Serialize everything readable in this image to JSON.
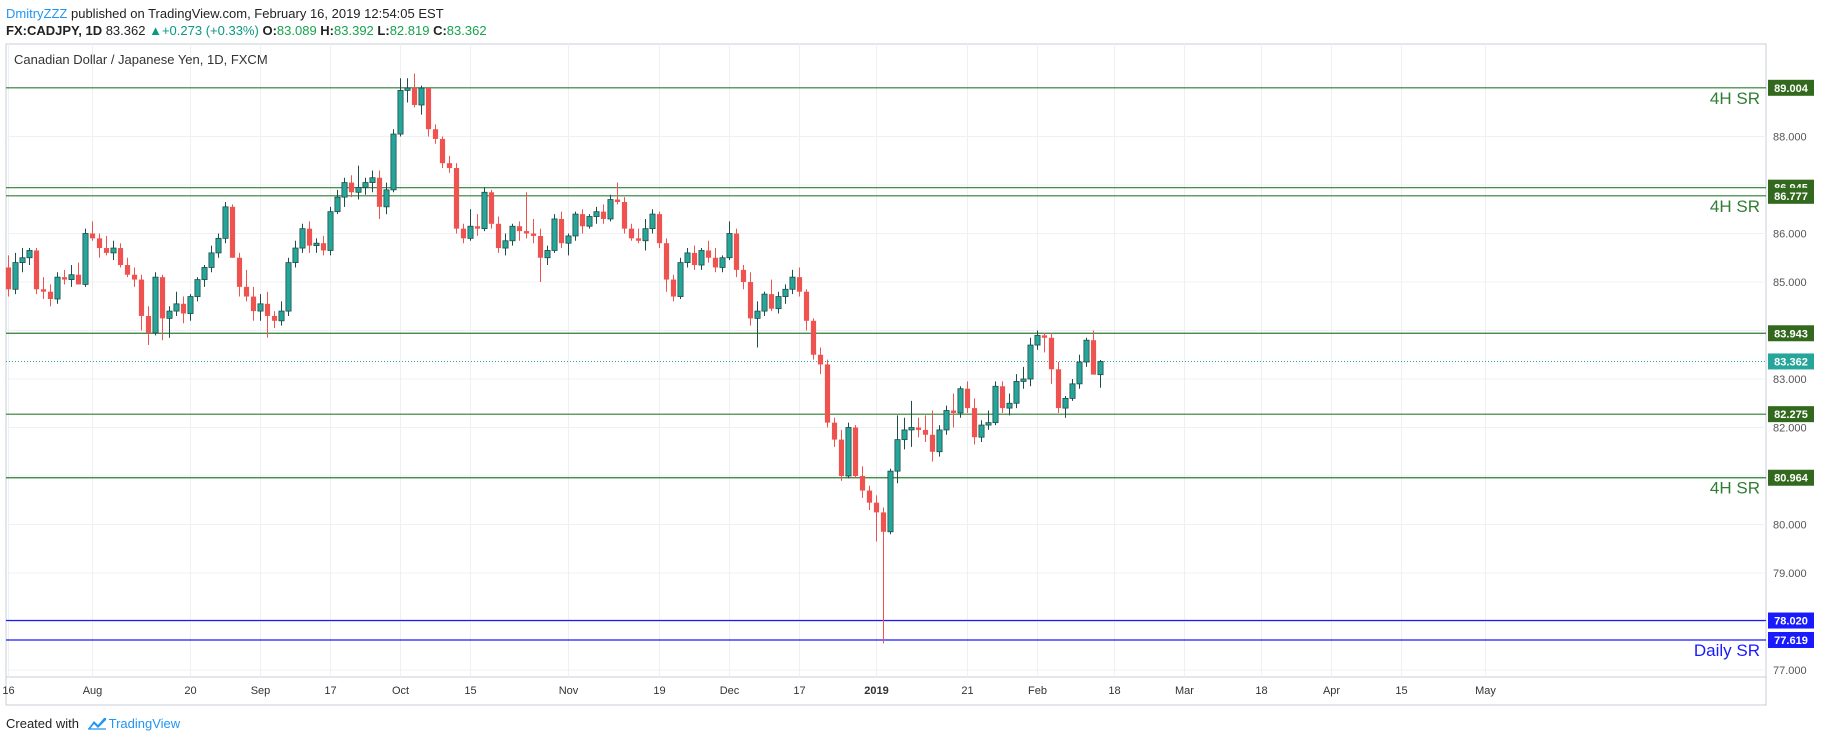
{
  "header": {
    "author": "DmitryZZZ",
    "published": " published on TradingView.com, February 16, 2019 12:54:05 EST",
    "symbol": "FX:CADJPY, 1D",
    "last": "83.362",
    "change": "+0.273 (+0.33%)",
    "o_label": "O:",
    "o_value": "83.089",
    "h_label": "H:",
    "h_value": "83.392",
    "l_label": "L:",
    "l_value": "82.819",
    "c_label": "C:",
    "c_value": "83.362"
  },
  "footer": {
    "created_with": "Created with",
    "brand": "TradingView"
  },
  "colors": {
    "up": "#26a69a",
    "down": "#ef5350",
    "level": "#2e7d32",
    "level_label_bg": "#33691e",
    "daily_line": "#1a1aff",
    "last_price": "#26a69a",
    "grid": "#eef0f3"
  },
  "chart_data": {
    "type": "candlestick",
    "title": "Canadian Dollar / Japanese Yen, 1D, FXCM",
    "ylim": [
      76.85,
      89.85
    ],
    "y_ticks": [
      77,
      78,
      79,
      80,
      81,
      82,
      83,
      84,
      85,
      86,
      87,
      88,
      89
    ],
    "y_tick_labels": [
      "77.000",
      "78.000",
      "79.000",
      "80.000",
      "81.000",
      "82.000",
      "83.000",
      "84.000",
      "85.000",
      "86.000",
      "87.000",
      "88.000",
      "89.000"
    ],
    "x_ticks": [
      {
        "label": "16",
        "idx": 0
      },
      {
        "label": "Aug",
        "idx": 12
      },
      {
        "label": "20",
        "idx": 26
      },
      {
        "label": "Sep",
        "idx": 36
      },
      {
        "label": "17",
        "idx": 46
      },
      {
        "label": "Oct",
        "idx": 56
      },
      {
        "label": "15",
        "idx": 66
      },
      {
        "label": "Nov",
        "idx": 80
      },
      {
        "label": "19",
        "idx": 93
      },
      {
        "label": "Dec",
        "idx": 103
      },
      {
        "label": "17",
        "idx": 113
      },
      {
        "label": "2019",
        "idx": 124,
        "bold": true
      },
      {
        "label": "21",
        "idx": 137
      },
      {
        "label": "Feb",
        "idx": 147
      },
      {
        "label": "18",
        "idx": 158
      },
      {
        "label": "Mar",
        "idx": 168
      },
      {
        "label": "18",
        "idx": 179
      },
      {
        "label": "Apr",
        "idx": 189
      },
      {
        "label": "15",
        "idx": 199
      },
      {
        "label": "May",
        "idx": 211
      }
    ],
    "candles": [
      [
        85.3,
        85.55,
        84.7,
        84.85
      ],
      [
        84.85,
        85.6,
        84.75,
        85.4
      ],
      [
        85.4,
        85.7,
        85.2,
        85.5
      ],
      [
        85.5,
        85.7,
        85.35,
        85.65
      ],
      [
        85.65,
        85.7,
        84.75,
        84.85
      ],
      [
        84.85,
        85.1,
        84.65,
        84.8
      ],
      [
        84.8,
        84.95,
        84.5,
        84.65
      ],
      [
        84.65,
        85.2,
        84.55,
        85.1
      ],
      [
        85.1,
        85.25,
        84.95,
        85.05
      ],
      [
        85.05,
        85.35,
        84.9,
        85.15
      ],
      [
        85.15,
        85.4,
        84.95,
        84.95
      ],
      [
        84.95,
        86.1,
        84.9,
        86.0
      ],
      [
        86.0,
        86.25,
        85.85,
        85.9
      ],
      [
        85.9,
        86.0,
        85.5,
        85.7
      ],
      [
        85.7,
        85.95,
        85.55,
        85.6
      ],
      [
        85.6,
        85.85,
        85.45,
        85.7
      ],
      [
        85.7,
        85.8,
        85.3,
        85.35
      ],
      [
        85.35,
        85.5,
        85.1,
        85.15
      ],
      [
        85.15,
        85.3,
        84.9,
        85.05
      ],
      [
        85.05,
        85.15,
        84.0,
        84.3
      ],
      [
        84.3,
        84.5,
        83.7,
        83.95
      ],
      [
        83.95,
        85.2,
        83.9,
        85.1
      ],
      [
        85.1,
        85.15,
        83.8,
        84.25
      ],
      [
        84.25,
        84.5,
        83.85,
        84.4
      ],
      [
        84.4,
        84.8,
        84.3,
        84.55
      ],
      [
        84.55,
        84.7,
        84.15,
        84.35
      ],
      [
        84.35,
        84.75,
        84.2,
        84.7
      ],
      [
        84.7,
        85.1,
        84.6,
        85.05
      ],
      [
        85.05,
        85.35,
        84.9,
        85.3
      ],
      [
        85.3,
        85.75,
        85.2,
        85.6
      ],
      [
        85.6,
        86.0,
        85.5,
        85.9
      ],
      [
        85.9,
        86.65,
        85.8,
        86.55
      ],
      [
        86.55,
        86.6,
        85.5,
        85.5
      ],
      [
        85.5,
        85.6,
        84.7,
        84.9
      ],
      [
        84.9,
        85.25,
        84.6,
        84.7
      ],
      [
        84.7,
        84.9,
        84.2,
        84.4
      ],
      [
        84.4,
        84.75,
        84.2,
        84.55
      ],
      [
        84.55,
        84.8,
        83.85,
        84.3
      ],
      [
        84.3,
        84.4,
        84.05,
        84.2
      ],
      [
        84.2,
        84.6,
        84.1,
        84.4
      ],
      [
        84.4,
        85.5,
        84.3,
        85.4
      ],
      [
        85.4,
        85.85,
        85.3,
        85.7
      ],
      [
        85.7,
        86.2,
        85.6,
        86.1
      ],
      [
        86.1,
        86.25,
        85.6,
        85.75
      ],
      [
        85.75,
        85.9,
        85.6,
        85.8
      ],
      [
        85.8,
        85.95,
        85.55,
        85.65
      ],
      [
        85.65,
        86.55,
        85.55,
        86.45
      ],
      [
        86.45,
        86.9,
        86.4,
        86.75
      ],
      [
        86.75,
        87.15,
        86.55,
        87.05
      ],
      [
        87.05,
        87.2,
        86.75,
        86.85
      ],
      [
        86.85,
        87.4,
        86.7,
        86.95
      ],
      [
        86.95,
        87.15,
        86.8,
        87.05
      ],
      [
        87.05,
        87.3,
        86.85,
        87.15
      ],
      [
        87.15,
        87.3,
        86.3,
        86.55
      ],
      [
        86.55,
        87.05,
        86.4,
        86.9
      ],
      [
        86.9,
        88.15,
        86.85,
        88.05
      ],
      [
        88.05,
        89.2,
        88.0,
        88.95
      ],
      [
        88.95,
        89.2,
        88.7,
        89.0
      ],
      [
        89.0,
        89.3,
        88.6,
        88.65
      ],
      [
        88.65,
        89.05,
        88.45,
        89.0
      ],
      [
        89.0,
        89.0,
        88.0,
        88.15
      ],
      [
        88.15,
        88.25,
        87.85,
        87.95
      ],
      [
        87.95,
        88.0,
        87.35,
        87.45
      ],
      [
        87.45,
        87.6,
        87.25,
        87.35
      ],
      [
        87.35,
        87.45,
        86.0,
        86.1
      ],
      [
        86.1,
        86.2,
        85.8,
        85.9
      ],
      [
        85.9,
        86.5,
        85.85,
        86.15
      ],
      [
        86.15,
        86.4,
        85.95,
        86.1
      ],
      [
        86.1,
        86.95,
        86.05,
        86.85
      ],
      [
        86.85,
        86.9,
        86.1,
        86.2
      ],
      [
        86.2,
        86.35,
        85.6,
        85.7
      ],
      [
        85.7,
        86.0,
        85.55,
        85.85
      ],
      [
        85.85,
        86.2,
        85.75,
        86.15
      ],
      [
        86.15,
        86.25,
        85.85,
        86.05
      ],
      [
        86.05,
        86.85,
        85.9,
        86.0
      ],
      [
        86.0,
        86.3,
        85.8,
        85.95
      ],
      [
        85.95,
        86.1,
        85.0,
        85.5
      ],
      [
        85.5,
        85.75,
        85.35,
        85.65
      ],
      [
        85.65,
        86.4,
        85.6,
        86.3
      ],
      [
        86.3,
        86.45,
        85.7,
        85.8
      ],
      [
        85.8,
        86.0,
        85.55,
        85.95
      ],
      [
        85.95,
        86.45,
        85.85,
        86.4
      ],
      [
        86.4,
        86.5,
        86.0,
        86.15
      ],
      [
        86.15,
        86.4,
        86.1,
        86.35
      ],
      [
        86.35,
        86.55,
        86.2,
        86.45
      ],
      [
        86.45,
        86.6,
        86.2,
        86.3
      ],
      [
        86.3,
        86.8,
        86.25,
        86.7
      ],
      [
        86.7,
        87.05,
        86.6,
        86.65
      ],
      [
        86.65,
        86.75,
        86.0,
        86.1
      ],
      [
        86.1,
        86.2,
        85.85,
        85.9
      ],
      [
        85.9,
        86.1,
        85.8,
        85.85
      ],
      [
        85.85,
        86.3,
        85.65,
        86.1
      ],
      [
        86.1,
        86.5,
        86.0,
        86.4
      ],
      [
        86.4,
        86.45,
        85.7,
        85.8
      ],
      [
        85.8,
        85.9,
        84.8,
        85.05
      ],
      [
        85.05,
        85.15,
        84.6,
        84.7
      ],
      [
        84.7,
        85.5,
        84.65,
        85.4
      ],
      [
        85.4,
        85.7,
        85.3,
        85.6
      ],
      [
        85.6,
        85.75,
        85.25,
        85.35
      ],
      [
        85.35,
        85.7,
        85.25,
        85.65
      ],
      [
        85.65,
        85.85,
        85.4,
        85.5
      ],
      [
        85.5,
        85.7,
        85.2,
        85.3
      ],
      [
        85.3,
        85.55,
        85.2,
        85.5
      ],
      [
        85.5,
        86.25,
        85.45,
        86.0
      ],
      [
        86.0,
        86.1,
        85.1,
        85.25
      ],
      [
        85.25,
        85.35,
        84.85,
        85.0
      ],
      [
        85.0,
        85.2,
        84.1,
        84.25
      ],
      [
        84.25,
        84.6,
        83.65,
        84.4
      ],
      [
        84.4,
        84.8,
        84.3,
        84.75
      ],
      [
        84.75,
        85.05,
        84.4,
        84.45
      ],
      [
        84.45,
        84.8,
        84.35,
        84.7
      ],
      [
        84.7,
        84.95,
        84.55,
        84.85
      ],
      [
        84.85,
        85.25,
        84.75,
        85.1
      ],
      [
        85.1,
        85.3,
        84.7,
        84.8
      ],
      [
        84.8,
        84.85,
        84.0,
        84.2
      ],
      [
        84.2,
        84.25,
        83.4,
        83.5
      ],
      [
        83.5,
        83.65,
        83.1,
        83.3
      ],
      [
        83.3,
        83.4,
        82.0,
        82.1
      ],
      [
        82.1,
        82.2,
        81.6,
        81.75
      ],
      [
        81.75,
        81.95,
        80.9,
        81.0
      ],
      [
        81.0,
        82.1,
        80.95,
        82.0
      ],
      [
        82.0,
        82.05,
        80.95,
        81.0
      ],
      [
        81.0,
        81.2,
        80.55,
        80.7
      ],
      [
        80.7,
        80.8,
        80.3,
        80.45
      ],
      [
        80.45,
        80.6,
        79.65,
        80.25
      ],
      [
        80.25,
        80.35,
        77.55,
        79.85
      ],
      [
        79.85,
        81.15,
        79.8,
        81.1
      ],
      [
        81.1,
        82.25,
        80.85,
        81.75
      ],
      [
        81.75,
        82.2,
        81.55,
        81.95
      ],
      [
        81.95,
        82.55,
        81.6,
        82.0
      ],
      [
        82.0,
        82.2,
        81.8,
        81.95
      ],
      [
        81.95,
        82.25,
        81.7,
        81.85
      ],
      [
        81.85,
        82.35,
        81.3,
        81.5
      ],
      [
        81.5,
        82.05,
        81.4,
        81.95
      ],
      [
        81.95,
        82.45,
        81.85,
        82.35
      ],
      [
        82.35,
        82.7,
        82.0,
        82.3
      ],
      [
        82.3,
        82.85,
        82.2,
        82.8
      ],
      [
        82.8,
        82.95,
        82.3,
        82.4
      ],
      [
        82.4,
        82.6,
        81.65,
        81.8
      ],
      [
        81.8,
        82.15,
        81.7,
        82.05
      ],
      [
        82.05,
        82.35,
        81.95,
        82.1
      ],
      [
        82.1,
        82.95,
        82.05,
        82.85
      ],
      [
        82.85,
        82.95,
        82.3,
        82.4
      ],
      [
        82.4,
        82.7,
        82.25,
        82.5
      ],
      [
        82.5,
        83.1,
        82.4,
        82.95
      ],
      [
        82.95,
        83.25,
        82.8,
        83.0
      ],
      [
        83.0,
        83.85,
        82.85,
        83.7
      ],
      [
        83.7,
        84.0,
        83.6,
        83.9
      ],
      [
        83.9,
        83.95,
        83.55,
        83.85
      ],
      [
        83.85,
        83.95,
        82.9,
        83.2
      ],
      [
        83.2,
        83.35,
        82.3,
        82.4
      ],
      [
        82.4,
        82.65,
        82.2,
        82.6
      ],
      [
        82.6,
        83.0,
        82.55,
        82.9
      ],
      [
        82.9,
        83.5,
        82.8,
        83.35
      ],
      [
        83.35,
        83.85,
        83.25,
        83.8
      ],
      [
        83.8,
        84.0,
        83.1,
        83.09
      ],
      [
        83.089,
        83.392,
        82.819,
        83.362
      ]
    ],
    "levels": [
      {
        "value": 89.004,
        "label": "89.004",
        "color": "#2e7d32",
        "label_bg": "#33691e"
      },
      {
        "value": 86.945,
        "label": "86.945",
        "color": "#2e7d32",
        "label_bg": "#33691e"
      },
      {
        "value": 86.777,
        "label": "86.777",
        "color": "#2e7d32",
        "label_bg": "#33691e"
      },
      {
        "value": 83.943,
        "label": "83.943",
        "color": "#2e7d32",
        "label_bg": "#33691e"
      },
      {
        "value": 82.275,
        "label": "82.275",
        "color": "#2e7d32",
        "label_bg": "#33691e"
      },
      {
        "value": 80.964,
        "label": "80.964",
        "color": "#2e7d32",
        "label_bg": "#33691e"
      },
      {
        "value": 78.02,
        "label": "78.020",
        "color": "#1a1aff",
        "label_bg": "#1a1aff"
      },
      {
        "value": 77.619,
        "label": "77.619",
        "color": "#1a1aff",
        "label_bg": "#1a1aff"
      }
    ],
    "last_price": {
      "value": 83.362,
      "label": "83.362"
    },
    "annotations": [
      {
        "text": "4H SR",
        "value": 89.004,
        "color": "#2e7d32"
      },
      {
        "text": "4H SR",
        "value": 86.777,
        "color": "#2e7d32"
      },
      {
        "text": "4H SR",
        "value": 80.964,
        "color": "#2e7d32"
      },
      {
        "text": "Daily SR",
        "value": 77.619,
        "color": "#1a1aff"
      }
    ],
    "grid": true,
    "legend": "none"
  }
}
